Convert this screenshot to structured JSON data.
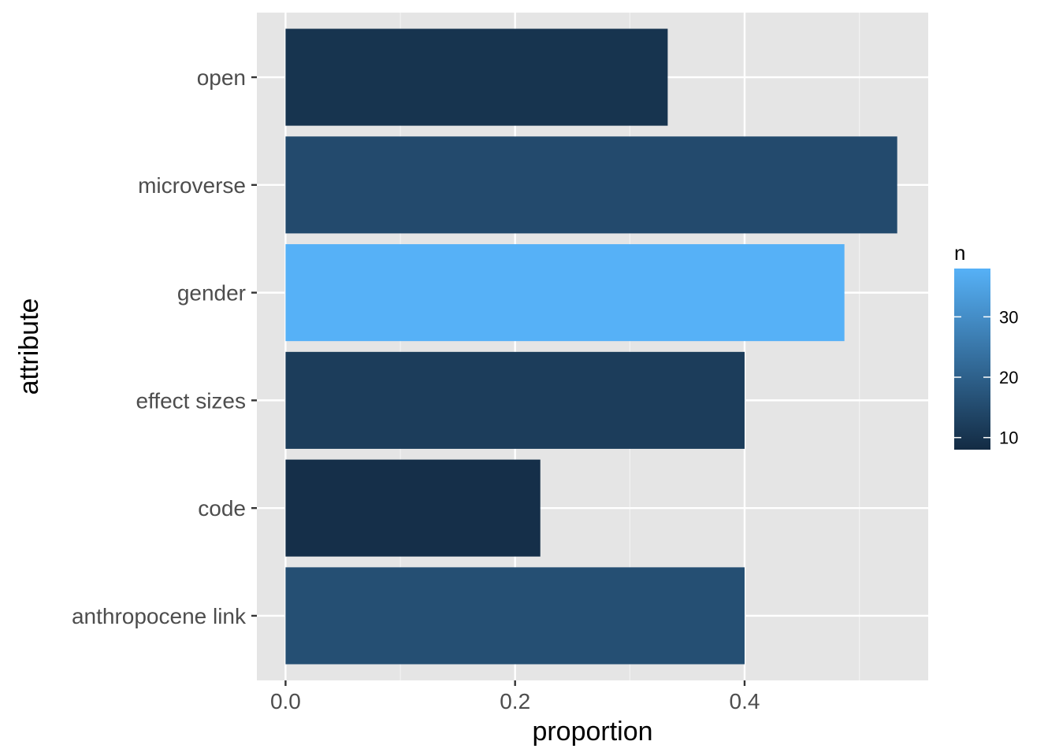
{
  "chart_data": {
    "type": "bar",
    "orientation": "horizontal",
    "xlabel": "proportion",
    "ylabel": "attribute",
    "categories": [
      "open",
      "microverse",
      "gender",
      "effect sizes",
      "code",
      "anthropocene link"
    ],
    "values": [
      0.333,
      0.533,
      0.487,
      0.4,
      0.222,
      0.4
    ],
    "n": [
      10,
      15,
      38,
      12,
      9,
      16
    ],
    "xlim": [
      -0.025,
      0.56
    ],
    "x_ticks": [
      0.0,
      0.2,
      0.4
    ],
    "x_tick_labels": [
      "0.0",
      "0.2",
      "0.4"
    ],
    "grid": true,
    "legend": {
      "title": "n",
      "position": "right",
      "type": "colorbar",
      "range": [
        8,
        38
      ],
      "ticks": [
        10,
        20,
        30
      ],
      "tick_labels": [
        "10",
        "20",
        "30"
      ],
      "low_color": "#132B43",
      "high_color": "#56B1F7"
    },
    "panel_background": "#e5e5e5",
    "grid_color": "#ffffff"
  }
}
